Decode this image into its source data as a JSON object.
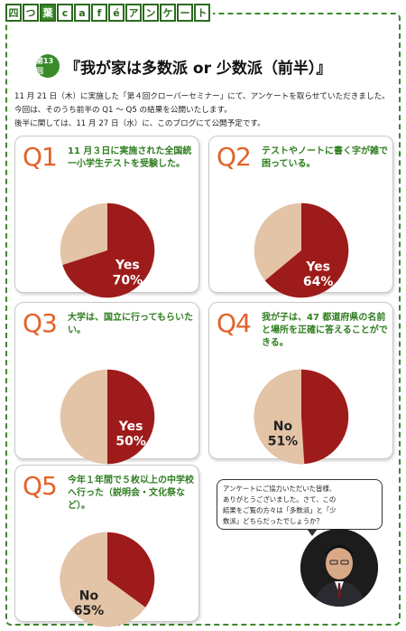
{
  "brand": {
    "chars": [
      "四",
      "つ",
      "葉",
      "c",
      "a",
      "f",
      "é",
      "ア",
      "ン",
      "ケ",
      "ー",
      "ト"
    ]
  },
  "header": {
    "badge": "第13回",
    "title": "『我が家は多数派 or 少数派（前半）』"
  },
  "intro": {
    "line1": "11 月 21 日（木）に実施した「第４回クローバーセミナー」にて、アンケートを取らせていただきました。",
    "line2": "今回は、そのうち前半の Q1 〜 Q5 の結果を公開いたします。",
    "line3": "後半に関しては、11 月 27 日（水）に、このブログにて公開予定です。"
  },
  "colors": {
    "accent_green": "#3a8a2a",
    "q_orange": "#e2622a",
    "pie_red": "#9e1b1b",
    "pie_beige": "#e4c4a6"
  },
  "questions": [
    {
      "num": "Q1",
      "text": "11 月３日に実施された全国統一小学生テストを受験した。",
      "answer": "Yes",
      "percent_label": "70%",
      "percent": 70
    },
    {
      "num": "Q2",
      "text": "テストやノートに書く字が雑で困っている。",
      "answer": "Yes",
      "percent_label": "64%",
      "percent": 64
    },
    {
      "num": "Q3",
      "text": "大学は、国立に行ってもらいたい。",
      "answer": "Yes",
      "percent_label": "50%",
      "percent": 50
    },
    {
      "num": "Q4",
      "text": "我が子は、47 都道府県の名前と場所を正確に答えることができる。",
      "answer": "No",
      "percent_label": "51%",
      "percent": 51
    },
    {
      "num": "Q5",
      "text": "今年１年間で５枚以上の中学校へ行った（説明会・文化祭など）。",
      "answer": "No",
      "percent_label": "65%",
      "percent": 65
    }
  ],
  "speech": {
    "line1": "アンケートにご協力いただいた皆様、",
    "line2": "ありがとうございました。さて、この",
    "line3": "結果をご覧の方々は「多数派」と「少",
    "line4": "数派」どちらだったでしょうか？"
  }
}
